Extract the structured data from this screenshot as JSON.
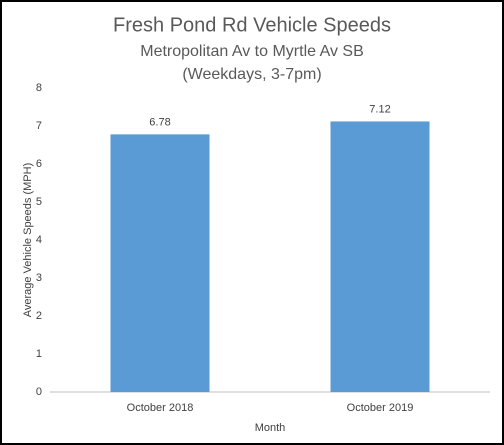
{
  "chart_data": {
    "type": "bar",
    "title": "Fresh Pond Rd Vehicle Speeds",
    "subtitle": [
      "Metropolitan Av to Myrtle Av SB",
      "(Weekdays, 3-7pm)"
    ],
    "x_label": "Month",
    "y_label": "Average Vehicle Speeds (MPH)",
    "categories": [
      "October 2018",
      "October 2019"
    ],
    "values": [
      6.78,
      7.12
    ],
    "color": "#5b9bd5",
    "ylim": [
      0,
      8
    ],
    "yticks": [
      0,
      1,
      2,
      3,
      4,
      5,
      6,
      7,
      8
    ],
    "grid": false
  }
}
